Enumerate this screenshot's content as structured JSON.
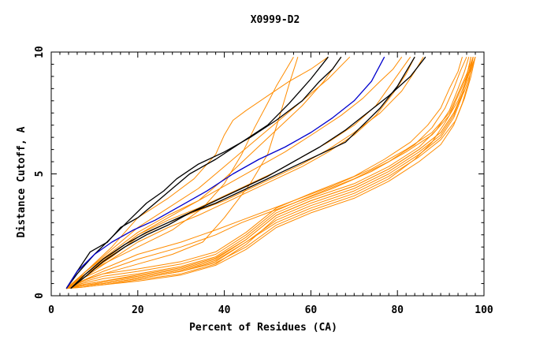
{
  "chart_data": {
    "type": "line",
    "title": "X0999-D2",
    "xlabel": "Percent of Residues (CA)",
    "ylabel": "Distance Cutoff, A",
    "xlim": [
      0,
      100
    ],
    "ylim": [
      0,
      10
    ],
    "xticks": [
      0,
      20,
      40,
      60,
      80,
      100
    ],
    "xtick_labels": [
      "0",
      "20",
      "40",
      "60",
      "80",
      "100"
    ],
    "yticks": [
      0,
      5,
      10
    ],
    "ytick_labels": [
      "0",
      "5",
      "10"
    ],
    "colors": {
      "orange": "#ff8c00",
      "black": "#000000",
      "blue": "#0000cd"
    },
    "series": [
      {
        "name": "orange-01",
        "color": "orange",
        "x": [
          3.5,
          7,
          12,
          20,
          30,
          38,
          45,
          52,
          60,
          70,
          78,
          85,
          90,
          93,
          95,
          96,
          97
        ],
        "y": [
          0.3,
          0.4,
          0.5,
          0.7,
          1.0,
          1.4,
          2.2,
          3.1,
          3.7,
          4.3,
          5.0,
          5.8,
          6.5,
          7.3,
          8.2,
          9.0,
          9.8
        ]
      },
      {
        "name": "orange-02",
        "color": "orange",
        "x": [
          3.5,
          7,
          12,
          20,
          30,
          38,
          45,
          52,
          60,
          70,
          78,
          85,
          90,
          93,
          95,
          96.5,
          97.5
        ],
        "y": [
          0.3,
          0.35,
          0.45,
          0.65,
          0.9,
          1.3,
          2.1,
          3.2,
          3.8,
          4.4,
          5.1,
          5.9,
          6.6,
          7.4,
          8.3,
          9.1,
          9.8
        ]
      },
      {
        "name": "orange-03",
        "color": "orange",
        "x": [
          3.5,
          7,
          12,
          20,
          30,
          38,
          45,
          52,
          60,
          70,
          78,
          85,
          90,
          93,
          95.5,
          97,
          98
        ],
        "y": [
          0.3,
          0.45,
          0.6,
          0.8,
          1.1,
          1.5,
          2.3,
          3.3,
          3.9,
          4.5,
          5.2,
          6.0,
          6.7,
          7.5,
          8.4,
          9.2,
          9.8
        ]
      },
      {
        "name": "orange-04",
        "color": "orange",
        "x": [
          3.5,
          7,
          12,
          20,
          30,
          38,
          45,
          52,
          60,
          70,
          78,
          85,
          90,
          93.5,
          95.5,
          97,
          98
        ],
        "y": [
          0.3,
          0.4,
          0.55,
          0.75,
          1.05,
          1.45,
          2.2,
          3.0,
          3.6,
          4.2,
          4.9,
          5.7,
          6.4,
          7.2,
          8.1,
          9.0,
          9.8
        ]
      },
      {
        "name": "orange-05",
        "color": "orange",
        "x": [
          3.5,
          7,
          12,
          20,
          30,
          38,
          45,
          52,
          60,
          70,
          78,
          85,
          89,
          92,
          94,
          95.5,
          96.5
        ],
        "y": [
          0.3,
          0.5,
          0.7,
          0.9,
          1.2,
          1.6,
          2.4,
          3.4,
          4.0,
          4.6,
          5.3,
          6.1,
          6.8,
          7.6,
          8.5,
          9.2,
          9.8
        ]
      },
      {
        "name": "orange-06",
        "color": "orange",
        "x": [
          3.5,
          7,
          12,
          20,
          30,
          38,
          45,
          52,
          60,
          70,
          78,
          84,
          88,
          91,
          93,
          94.5,
          96
        ],
        "y": [
          0.3,
          0.55,
          0.8,
          1.0,
          1.3,
          1.7,
          2.5,
          3.5,
          4.1,
          4.8,
          5.5,
          6.2,
          6.9,
          7.7,
          8.5,
          9.2,
          9.8
        ]
      },
      {
        "name": "orange-07",
        "color": "orange",
        "x": [
          3.5,
          7,
          12,
          20,
          30,
          38,
          45,
          52,
          60,
          70,
          78,
          84,
          88,
          91,
          94,
          96,
          97.5
        ],
        "y": [
          0.3,
          0.4,
          0.5,
          0.7,
          1.0,
          1.35,
          2.0,
          2.9,
          3.5,
          4.1,
          4.8,
          5.6,
          6.3,
          7.1,
          8.0,
          8.9,
          9.8
        ]
      },
      {
        "name": "orange-08",
        "color": "orange",
        "x": [
          3.5,
          7,
          12,
          20,
          30,
          38,
          45,
          52,
          60,
          70,
          77,
          83,
          87,
          90,
          92,
          94,
          95
        ],
        "y": [
          0.3,
          0.6,
          0.9,
          1.1,
          1.4,
          1.8,
          2.6,
          3.6,
          4.2,
          4.9,
          5.6,
          6.3,
          7.0,
          7.7,
          8.5,
          9.2,
          9.8
        ]
      },
      {
        "name": "orange-09",
        "color": "orange",
        "x": [
          3.5,
          7,
          12,
          20,
          30,
          38,
          45,
          52,
          60,
          70,
          78,
          85,
          90,
          93,
          95,
          96.5,
          97.5
        ],
        "y": [
          0.3,
          0.35,
          0.45,
          0.6,
          0.85,
          1.25,
          1.9,
          2.8,
          3.4,
          4.0,
          4.7,
          5.5,
          6.2,
          7.0,
          7.9,
          8.8,
          9.8
        ]
      },
      {
        "name": "orange-10",
        "color": "orange",
        "x": [
          3.5,
          7,
          12,
          20,
          30,
          38,
          45,
          52,
          60,
          70,
          78,
          85,
          90,
          93,
          95,
          96.5,
          98
        ],
        "y": [
          0.3,
          0.45,
          0.6,
          0.85,
          1.15,
          1.55,
          2.3,
          3.3,
          3.9,
          4.5,
          5.2,
          6.0,
          6.7,
          7.5,
          8.3,
          9.1,
          9.8
        ]
      },
      {
        "name": "orange-11",
        "color": "orange",
        "x": [
          3.5,
          7,
          12,
          20,
          30,
          38,
          44,
          50,
          56,
          65,
          74,
          82,
          88,
          92,
          94,
          96,
          97
        ],
        "y": [
          0.3,
          0.6,
          1.0,
          1.5,
          2.0,
          2.5,
          3.0,
          3.4,
          3.8,
          4.4,
          5.1,
          5.9,
          6.6,
          7.4,
          8.2,
          9.0,
          9.8
        ]
      },
      {
        "name": "orange-12",
        "color": "orange",
        "x": [
          3.5,
          7,
          12,
          20,
          30,
          38,
          44,
          50,
          56,
          65,
          74,
          82,
          88,
          92,
          94,
          96,
          97.5
        ],
        "y": [
          0.3,
          0.7,
          1.1,
          1.7,
          2.2,
          2.7,
          3.1,
          3.5,
          3.9,
          4.5,
          5.2,
          6.0,
          6.7,
          7.5,
          8.3,
          9.1,
          9.8
        ]
      },
      {
        "name": "orange-13",
        "color": "orange",
        "x": [
          3.5,
          7,
          12,
          20,
          28,
          35,
          40,
          46,
          50,
          53,
          55,
          57
        ],
        "y": [
          0.3,
          0.6,
          0.9,
          1.3,
          1.7,
          2.2,
          3.2,
          4.6,
          5.8,
          7.5,
          8.7,
          9.8
        ]
      },
      {
        "name": "orange-14",
        "color": "orange",
        "x": [
          3.5,
          7,
          12,
          20,
          28,
          35,
          40,
          44,
          47,
          50,
          52,
          54,
          56
        ],
        "y": [
          0.3,
          0.8,
          1.3,
          2.0,
          2.7,
          3.6,
          4.6,
          5.8,
          6.9,
          7.9,
          8.6,
          9.2,
          9.8
        ]
      },
      {
        "name": "orange-15",
        "color": "orange",
        "x": [
          3.5,
          8,
          14,
          20,
          27,
          33,
          38,
          40,
          42,
          45,
          50,
          55,
          60,
          64
        ],
        "y": [
          0.3,
          1.0,
          2.0,
          3.2,
          4.0,
          4.8,
          5.8,
          6.6,
          7.2,
          7.6,
          8.2,
          8.8,
          9.3,
          9.8
        ]
      },
      {
        "name": "orange-16",
        "color": "orange",
        "x": [
          3.5,
          8,
          14,
          20,
          27,
          34,
          40,
          46,
          52,
          58,
          64,
          69
        ],
        "y": [
          0.3,
          1.0,
          1.9,
          2.8,
          3.6,
          4.4,
          5.3,
          6.2,
          7.1,
          8.0,
          8.9,
          9.8
        ]
      },
      {
        "name": "orange-17",
        "color": "orange",
        "x": [
          3.5,
          8,
          14,
          20,
          27,
          34,
          40,
          46,
          52,
          58,
          63,
          67
        ],
        "y": [
          0.3,
          0.9,
          1.7,
          2.5,
          3.2,
          3.9,
          4.8,
          5.8,
          6.8,
          7.8,
          8.8,
          9.8
        ]
      },
      {
        "name": "orange-18",
        "color": "orange",
        "x": [
          3.5,
          8,
          14,
          20,
          27,
          34,
          40,
          46,
          52,
          58,
          64,
          70,
          75,
          79,
          83
        ],
        "y": [
          0.3,
          0.9,
          1.7,
          2.5,
          3.1,
          3.6,
          4.1,
          4.6,
          5.1,
          5.7,
          6.3,
          7.0,
          7.8,
          8.8,
          9.8
        ]
      },
      {
        "name": "orange-19",
        "color": "orange",
        "x": [
          3.5,
          8,
          14,
          20,
          27,
          34,
          40,
          46,
          52,
          58,
          64,
          70,
          76,
          81,
          84,
          86
        ],
        "y": [
          0.3,
          0.9,
          1.6,
          2.4,
          3.0,
          3.5,
          3.9,
          4.4,
          4.9,
          5.4,
          6.0,
          6.7,
          7.5,
          8.4,
          9.2,
          9.8
        ]
      },
      {
        "name": "orange-20",
        "color": "orange",
        "x": [
          3.5,
          8,
          14,
          20,
          27,
          34,
          40,
          47,
          54,
          61,
          67,
          72,
          76,
          79,
          81
        ],
        "y": [
          0.3,
          1.0,
          1.8,
          2.6,
          3.3,
          3.9,
          4.5,
          5.2,
          5.9,
          6.7,
          7.4,
          8.1,
          8.8,
          9.3,
          9.8
        ]
      },
      {
        "name": "orange-21",
        "color": "orange",
        "x": [
          3.5,
          8,
          14,
          20,
          27,
          34,
          40,
          46,
          52,
          58,
          64,
          70,
          75,
          79,
          82,
          84
        ],
        "y": [
          0.3,
          0.8,
          1.5,
          2.2,
          2.8,
          3.3,
          3.8,
          4.3,
          4.8,
          5.3,
          5.9,
          6.6,
          7.4,
          8.3,
          9.1,
          9.8
        ]
      },
      {
        "name": "black-1",
        "color": "black",
        "x": [
          3.5,
          6,
          10,
          14,
          18,
          22,
          26,
          29,
          34,
          40,
          46,
          52,
          58,
          62,
          65,
          67
        ],
        "y": [
          0.3,
          0.9,
          1.7,
          2.4,
          3.1,
          3.8,
          4.3,
          4.8,
          5.4,
          5.9,
          6.5,
          7.2,
          8.0,
          8.8,
          9.3,
          9.8
        ]
      },
      {
        "name": "black-2",
        "color": "black",
        "x": [
          3.5,
          6,
          9,
          13,
          16,
          20,
          24,
          28,
          32,
          38,
          44,
          50,
          55,
          60,
          64
        ],
        "y": [
          0.3,
          1.0,
          1.8,
          2.2,
          2.8,
          3.2,
          3.8,
          4.4,
          5.0,
          5.6,
          6.3,
          7.0,
          7.9,
          8.9,
          9.8
        ]
      },
      {
        "name": "black-3",
        "color": "black",
        "x": [
          4.5,
          8,
          12,
          17,
          22,
          27,
          32,
          38,
          44,
          50,
          56,
          62,
          68,
          73,
          78,
          83,
          86.5
        ],
        "y": [
          0.3,
          0.8,
          1.4,
          2.0,
          2.5,
          2.9,
          3.4,
          3.9,
          4.4,
          4.9,
          5.5,
          6.1,
          6.8,
          7.5,
          8.2,
          9.0,
          9.8
        ]
      },
      {
        "name": "black-4",
        "color": "black",
        "x": [
          4.5,
          8,
          12,
          17,
          22,
          27,
          32,
          38,
          44,
          50,
          56,
          62,
          68,
          72,
          76,
          80,
          84
        ],
        "y": [
          0.3,
          0.9,
          1.5,
          2.1,
          2.6,
          3.0,
          3.4,
          3.8,
          4.3,
          4.8,
          5.3,
          5.8,
          6.3,
          7.0,
          7.7,
          8.6,
          9.8
        ]
      },
      {
        "name": "blue-1",
        "color": "blue",
        "x": [
          3.5,
          6,
          10,
          14,
          19,
          24,
          30,
          36,
          42,
          48,
          54,
          60,
          65,
          70,
          74,
          77
        ],
        "y": [
          0.3,
          1.0,
          1.7,
          2.2,
          2.7,
          3.1,
          3.7,
          4.3,
          5.0,
          5.6,
          6.1,
          6.7,
          7.3,
          8.0,
          8.8,
          9.8
        ]
      }
    ]
  }
}
